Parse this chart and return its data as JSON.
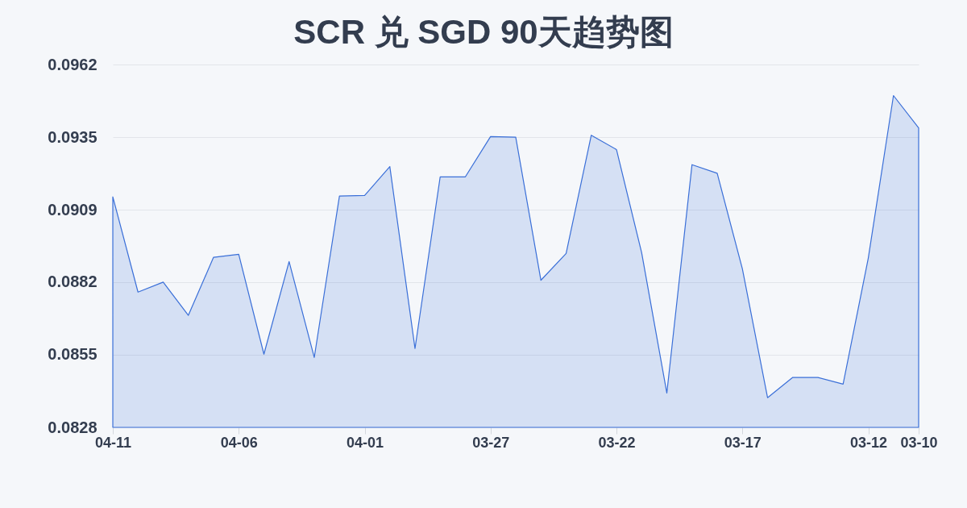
{
  "chart_data": {
    "type": "area",
    "title": "SCR 兑 SGD 90天趋势图",
    "categories": [
      "04-11",
      null,
      null,
      null,
      null,
      "04-06",
      null,
      null,
      null,
      null,
      "04-01",
      null,
      null,
      null,
      null,
      "03-27",
      null,
      null,
      null,
      null,
      "03-22",
      null,
      null,
      null,
      null,
      "03-17",
      null,
      null,
      null,
      null,
      "03-12",
      null,
      "03-10"
    ],
    "series": [
      {
        "color": "#3a6fd8",
        "values": [
          0.09133,
          0.0878,
          0.08817,
          0.08694,
          0.08909,
          0.0892,
          0.0855,
          0.08893,
          0.08538,
          0.09136,
          0.09138,
          0.09245,
          0.08571,
          0.09207,
          0.09207,
          0.09356,
          0.09354,
          0.08824,
          0.08923,
          0.09361,
          0.09308,
          0.08926,
          0.08406,
          0.09252,
          0.0922,
          0.08866,
          0.08389,
          0.08464,
          0.08464,
          0.08439,
          0.08906,
          0.09508,
          0.09388
        ]
      }
    ],
    "ylim": [
      0.08279,
      0.09623
    ],
    "yticks": [
      {
        "value": 0.08279,
        "label": "0.0828"
      },
      {
        "value": 0.08548,
        "label": "0.0855"
      },
      {
        "value": 0.08817,
        "label": "0.0882"
      },
      {
        "value": 0.09085,
        "label": "0.0909"
      },
      {
        "value": 0.09354,
        "label": "0.0935"
      },
      {
        "value": 0.09623,
        "label": "0.0962"
      }
    ],
    "grid": "y"
  }
}
